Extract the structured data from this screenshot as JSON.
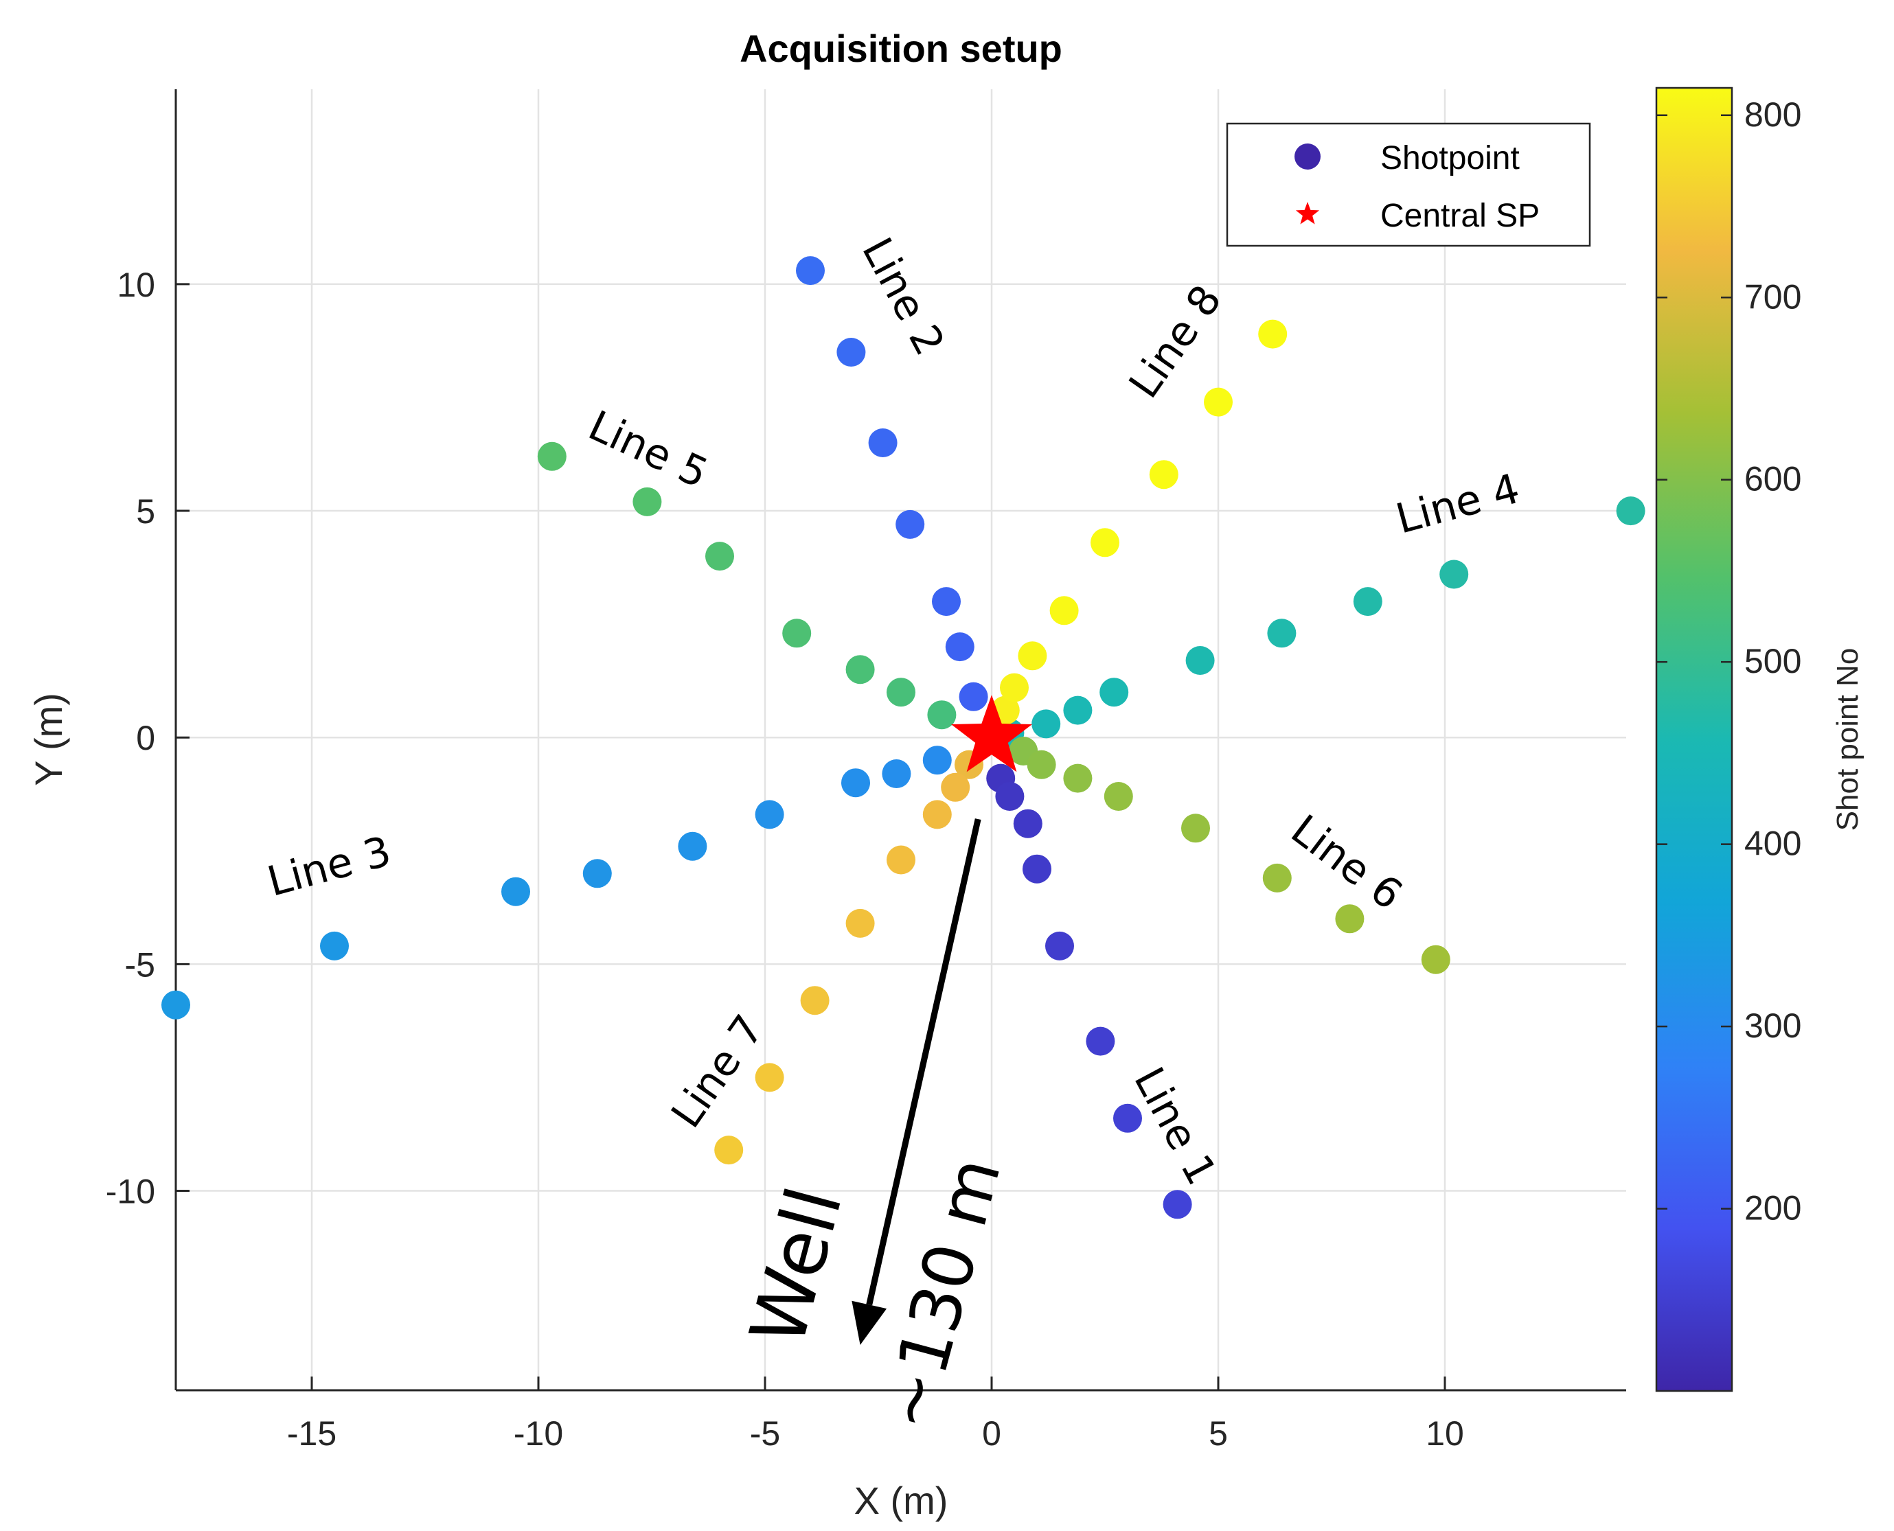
{
  "chart_data": {
    "type": "scatter",
    "title": "Acquisition setup",
    "xlabel": "X (m)",
    "ylabel": "Y (m)",
    "xlim": [
      -18,
      14
    ],
    "ylim": [
      -14.4,
      14.3
    ],
    "xticks": [
      -15,
      -10,
      -5,
      0,
      5,
      10
    ],
    "xtick_labels": [
      "-15",
      "-10",
      "-5",
      "0",
      "5",
      "10"
    ],
    "yticks": [
      -10,
      -5,
      0,
      5,
      10
    ],
    "ytick_labels": [
      "-10",
      "-5",
      "0",
      "5",
      "10"
    ],
    "grid": true,
    "legend": {
      "position": "top-right",
      "entries": [
        {
          "label": "Shotpoint",
          "marker": "circle",
          "color": "#3e26a8"
        },
        {
          "label": "Central SP",
          "marker": "star",
          "color": "#ff0000"
        }
      ]
    },
    "colorbar": {
      "label": "Shot point No",
      "range": [
        100,
        815
      ],
      "ticks": [
        200,
        300,
        400,
        500,
        600,
        700,
        800
      ],
      "tick_labels": [
        "200",
        "300",
        "400",
        "500",
        "600",
        "700",
        "800"
      ],
      "colormap": "parula"
    },
    "central_sp": {
      "x": 0,
      "y": 0
    },
    "series": [
      {
        "name": "Line 1",
        "c": 130,
        "points": [
          [
            0.2,
            -0.9
          ],
          [
            0.4,
            -1.3
          ],
          [
            0.8,
            -1.9
          ],
          [
            1.0,
            -2.9
          ],
          [
            1.5,
            -4.6
          ],
          [
            2.4,
            -6.7
          ],
          [
            3.0,
            -8.4
          ],
          [
            4.1,
            -10.3
          ]
        ]
      },
      {
        "name": "Line 2",
        "c": 215,
        "points": [
          [
            -0.4,
            0.9
          ],
          [
            -0.7,
            2.0
          ],
          [
            -1.0,
            3.0
          ],
          [
            -1.8,
            4.7
          ],
          [
            -2.4,
            6.5
          ],
          [
            -3.1,
            8.5
          ],
          [
            -4.0,
            10.3
          ]
        ]
      },
      {
        "name": "Line 3",
        "c": 305,
        "points": [
          [
            -1.2,
            -0.5
          ],
          [
            -2.1,
            -0.8
          ],
          [
            -3.0,
            -1.0
          ],
          [
            -4.9,
            -1.7
          ],
          [
            -6.6,
            -2.4
          ],
          [
            -8.7,
            -3.0
          ],
          [
            -10.5,
            -3.4
          ],
          [
            -14.5,
            -4.6
          ],
          [
            -18.0,
            -5.9
          ]
        ]
      },
      {
        "name": "Line 4",
        "c": 445,
        "points": [
          [
            0.4,
            0.1
          ],
          [
            1.2,
            0.3
          ],
          [
            1.9,
            0.6
          ],
          [
            2.7,
            1.0
          ],
          [
            4.6,
            1.7
          ],
          [
            6.4,
            2.3
          ],
          [
            8.3,
            3.0
          ],
          [
            10.2,
            3.6
          ],
          [
            14.1,
            5.0
          ]
        ]
      },
      {
        "name": "Line 5",
        "c": 525,
        "points": [
          [
            -1.1,
            0.5
          ],
          [
            -2.0,
            1.0
          ],
          [
            -2.9,
            1.5
          ],
          [
            -4.3,
            2.3
          ],
          [
            -6.0,
            4.0
          ],
          [
            -7.6,
            5.2
          ],
          [
            -9.7,
            6.2
          ]
        ]
      },
      {
        "name": "Line 6",
        "c": 605,
        "points": [
          [
            0.7,
            -0.3
          ],
          [
            1.1,
            -0.6
          ],
          [
            1.9,
            -0.9
          ],
          [
            2.8,
            -1.3
          ],
          [
            4.5,
            -2.0
          ],
          [
            6.3,
            -3.1
          ],
          [
            7.9,
            -4.0
          ],
          [
            9.8,
            -4.9
          ]
        ]
      },
      {
        "name": "Line 7",
        "c": 720,
        "points": [
          [
            -0.5,
            -0.6
          ],
          [
            -0.8,
            -1.1
          ],
          [
            -1.2,
            -1.7
          ],
          [
            -2.0,
            -2.7
          ],
          [
            -2.9,
            -4.1
          ],
          [
            -3.9,
            -5.8
          ],
          [
            -4.9,
            -7.5
          ],
          [
            -5.8,
            -9.1
          ]
        ]
      },
      {
        "name": "Line 8",
        "c": 800,
        "points": [
          [
            0.3,
            0.6
          ],
          [
            0.5,
            1.1
          ],
          [
            0.9,
            1.8
          ],
          [
            1.6,
            2.8
          ],
          [
            2.5,
            4.3
          ],
          [
            3.8,
            5.8
          ],
          [
            5.0,
            7.4
          ],
          [
            6.2,
            8.9
          ]
        ]
      }
    ],
    "annotations": [
      {
        "text": "Line 1",
        "x": 4.0,
        "y": -8.6,
        "rotation": 62,
        "size": 60
      },
      {
        "text": "Line 2",
        "x": -2.0,
        "y": 9.7,
        "rotation": 62,
        "size": 60
      },
      {
        "text": "Line 3",
        "x": -14.6,
        "y": -2.9,
        "rotation": -15,
        "size": 60
      },
      {
        "text": "Line 4",
        "x": 10.3,
        "y": 5.1,
        "rotation": -15,
        "size": 60
      },
      {
        "text": "Line 5",
        "x": -7.6,
        "y": 6.3,
        "rotation": 25,
        "size": 60
      },
      {
        "text": "Line 6",
        "x": 7.8,
        "y": -2.8,
        "rotation": 37,
        "size": 60
      },
      {
        "text": "Line 7",
        "x": -6.0,
        "y": -7.4,
        "rotation": -55,
        "size": 60
      },
      {
        "text": "Line 8",
        "x": 4.1,
        "y": 8.7,
        "rotation": -55,
        "size": 60
      },
      {
        "text": "Well",
        "x": -4.2,
        "y": -11.7,
        "rotation": -75,
        "size": 110
      },
      {
        "text": "~130 m",
        "x": -1.0,
        "y": -12.3,
        "rotation": -75,
        "size": 100
      }
    ],
    "arrow": {
      "from": [
        -0.3,
        -1.8
      ],
      "to": [
        -2.9,
        -13.4
      ]
    }
  }
}
